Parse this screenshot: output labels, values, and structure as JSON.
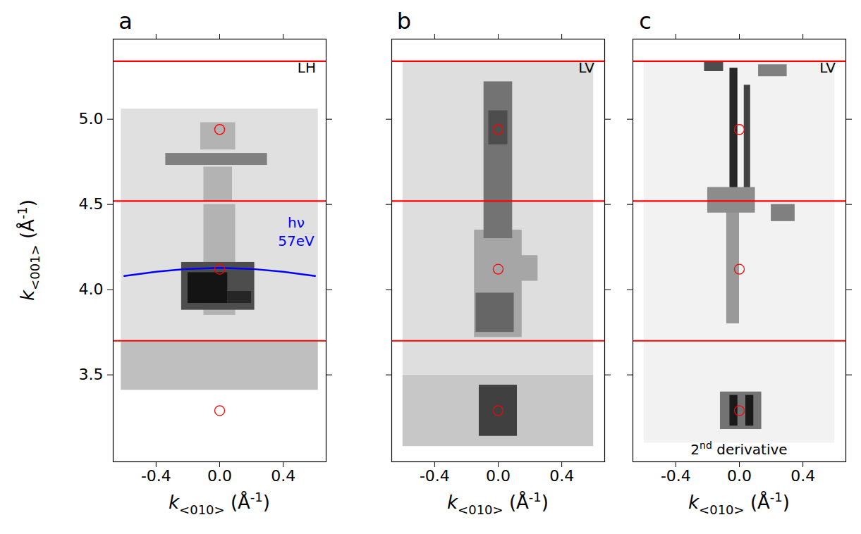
{
  "chart_data": [
    {
      "type": "heatmap",
      "title": "a",
      "annotation": "LH",
      "xlabel": "k<010> (Å-1)",
      "ylabel": "k<001> (Å-1)",
      "xlim": [
        -0.67,
        0.67
      ],
      "ylim": [
        2.99,
        5.47
      ],
      "xticks": [
        -0.4,
        {
          "value": 0,
          "label": "0.0"
        },
        0.4
      ],
      "yticks": [
        3.5,
        {
          "value": 4,
          "label": "4.0"
        },
        4.5,
        {
          "value": 5,
          "label": "5.0"
        }
      ],
      "value_range": [
        0,
        1
      ],
      "cells": [
        {
          "x1": -0.62,
          "x2": 0.62,
          "y1": 3.41,
          "y2": 3.7,
          "value": 0.25
        },
        {
          "x1": -0.62,
          "x2": 0.62,
          "y1": 3.7,
          "y2": 5.06,
          "value": 0.12
        },
        {
          "x1": -0.1,
          "x2": 0.1,
          "y1": 3.85,
          "y2": 4.5,
          "value": 0.3
        },
        {
          "x1": -0.24,
          "x2": 0.22,
          "y1": 3.88,
          "y2": 4.16,
          "value": 0.7
        },
        {
          "x1": -0.2,
          "x2": 0.05,
          "y1": 3.92,
          "y2": 4.1,
          "value": 0.92
        },
        {
          "x1": 0.05,
          "x2": 0.2,
          "y1": 3.92,
          "y2": 3.99,
          "value": 0.85
        },
        {
          "x1": -0.1,
          "x2": 0.08,
          "y1": 4.52,
          "y2": 4.72,
          "value": 0.3
        },
        {
          "x1": -0.34,
          "x2": 0.3,
          "y1": 4.73,
          "y2": 4.8,
          "value": 0.5
        },
        {
          "x1": -0.12,
          "x2": 0.1,
          "y1": 4.82,
          "y2": 4.98,
          "value": 0.3
        }
      ],
      "reference_lines": {
        "values": [
          3.7,
          4.52,
          5.34
        ],
        "color": "#ff0000"
      },
      "markers": {
        "x": [
          0,
          0,
          0
        ],
        "y": [
          3.29,
          4.12,
          4.94
        ],
        "color": "#ff0000",
        "marker": "circle"
      },
      "series": [
        {
          "name": "hν 57eV",
          "color": "#0000ff",
          "x": [
            -0.6,
            -0.4,
            -0.2,
            0,
            0.2,
            0.4,
            0.6
          ],
          "values": [
            4.08,
            4.105,
            4.122,
            4.128,
            4.122,
            4.105,
            4.08
          ]
        }
      ]
    },
    {
      "type": "heatmap",
      "title": "b",
      "annotation": "LV",
      "xlabel": "k<010> (Å-1)",
      "xlim": [
        -0.67,
        0.67
      ],
      "ylim": [
        2.99,
        5.47
      ],
      "xticks": [
        -0.4,
        {
          "value": 0,
          "label": "0.0"
        },
        0.4
      ],
      "yticks": [
        3.5,
        4,
        4.5,
        5
      ],
      "tick_labels": "x",
      "value_range": [
        0,
        1
      ],
      "cells": [
        {
          "x1": -0.6,
          "x2": 0.6,
          "y1": 3.08,
          "y2": 3.5,
          "value": 0.22
        },
        {
          "x1": -0.6,
          "x2": 0.6,
          "y1": 3.5,
          "y2": 5.34,
          "value": 0.13
        },
        {
          "x1": -0.12,
          "x2": 0.12,
          "y1": 3.14,
          "y2": 3.44,
          "value": 0.75
        },
        {
          "x1": -0.15,
          "x2": 0.15,
          "y1": 3.72,
          "y2": 4.35,
          "value": 0.35
        },
        {
          "x1": -0.14,
          "x2": 0.1,
          "y1": 3.75,
          "y2": 3.98,
          "value": 0.6
        },
        {
          "x1": -0.09,
          "x2": 0.09,
          "y1": 4.3,
          "y2": 5.22,
          "value": 0.55
        },
        {
          "x1": -0.06,
          "x2": 0.06,
          "y1": 4.85,
          "y2": 5.05,
          "value": 0.7
        },
        {
          "x1": 0.12,
          "x2": 0.25,
          "y1": 4.05,
          "y2": 4.2,
          "value": 0.35
        }
      ],
      "reference_lines": {
        "values": [
          3.7,
          4.52,
          5.34
        ],
        "color": "#ff0000"
      },
      "markers": {
        "x": [
          0,
          0,
          0
        ],
        "y": [
          3.29,
          4.12,
          4.94
        ],
        "color": "#ff0000",
        "marker": "circle"
      }
    },
    {
      "type": "heatmap",
      "title": "c",
      "annotation": "LV",
      "footnote": "2nd derivative",
      "xlabel": "k<010> (Å-1)",
      "xlim": [
        -0.67,
        0.67
      ],
      "ylim": [
        2.99,
        5.47
      ],
      "xticks": [
        -0.4,
        {
          "value": 0,
          "label": "0.0"
        },
        0.4
      ],
      "yticks": [
        3.5,
        4,
        4.5,
        5
      ],
      "tick_labels": "x",
      "value_range": [
        0,
        1
      ],
      "cells": [
        {
          "x1": -0.6,
          "x2": 0.6,
          "y1": 3.1,
          "y2": 5.34,
          "value": 0.05
        },
        {
          "x1": -0.12,
          "x2": 0.14,
          "y1": 3.18,
          "y2": 3.4,
          "value": 0.55
        },
        {
          "x1": -0.06,
          "x2": -0.01,
          "y1": 3.2,
          "y2": 3.38,
          "value": 0.9
        },
        {
          "x1": 0.04,
          "x2": 0.09,
          "y1": 3.2,
          "y2": 3.38,
          "value": 0.9
        },
        {
          "x1": -0.08,
          "x2": 0.0,
          "y1": 3.8,
          "y2": 4.5,
          "value": 0.4
        },
        {
          "x1": -0.06,
          "x2": -0.01,
          "y1": 4.5,
          "y2": 5.3,
          "value": 0.85
        },
        {
          "x1": 0.03,
          "x2": 0.07,
          "y1": 4.5,
          "y2": 5.2,
          "value": 0.75
        },
        {
          "x1": -0.2,
          "x2": 0.1,
          "y1": 4.45,
          "y2": 4.6,
          "value": 0.45
        },
        {
          "x1": 0.2,
          "x2": 0.35,
          "y1": 4.4,
          "y2": 4.5,
          "value": 0.5
        },
        {
          "x1": -0.22,
          "x2": -0.1,
          "y1": 5.28,
          "y2": 5.34,
          "value": 0.7
        },
        {
          "x1": 0.12,
          "x2": 0.3,
          "y1": 5.25,
          "y2": 5.32,
          "value": 0.5
        }
      ],
      "reference_lines": {
        "values": [
          3.7,
          4.52,
          5.34
        ],
        "color": "#ff0000"
      },
      "markers": {
        "x": [
          0,
          0,
          0
        ],
        "y": [
          3.29,
          4.12,
          4.94
        ],
        "color": "#ff0000",
        "marker": "circle"
      }
    }
  ]
}
